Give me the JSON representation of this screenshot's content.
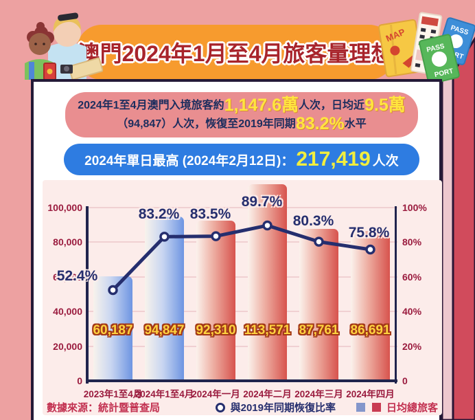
{
  "header": {
    "title": "澳門2024年1月至4月旅客量理想",
    "icons": {
      "map": "MAP",
      "pass_blue_top": "PASS",
      "pass_blue_bottom": "PORT",
      "pass_green_top": "PASS",
      "pass_green_bottom": "PORT"
    }
  },
  "summary": {
    "line1_pre": "2024年1至4月澳門入境旅客約",
    "line1_big1": "1,147.6萬",
    "line1_mid": "人次，日均近",
    "line1_big2": "9.5萬",
    "line2_pre": "（94,847）人次，恢復至2019年同期",
    "line2_big": "83.2%",
    "line2_post": "水平"
  },
  "peak_banner": {
    "label": "2024年單日最高 (2024年2月12日)：",
    "value": "217,419",
    "suffix": "人次"
  },
  "chart_data": {
    "type": "bar+line",
    "categories": [
      "2023年1至4月",
      "2024年1至4月",
      "2024年一月",
      "2024年二月",
      "2024年三月",
      "2024年四月"
    ],
    "series": [
      {
        "name": "日均總旅客",
        "type": "bar",
        "values": [
          60187,
          94847,
          92310,
          113571,
          87761,
          86691
        ],
        "value_labels": [
          "60,187",
          "94,847",
          "92,310",
          "113,571",
          "87,761",
          "86,691"
        ],
        "bar_styles": [
          "blue",
          "blue",
          "red",
          "red",
          "red",
          "red"
        ]
      },
      {
        "name": "與2019年同期恢復比率",
        "type": "line",
        "values": [
          52.4,
          83.2,
          83.5,
          89.7,
          80.3,
          75.8
        ],
        "point_labels": [
          "52.4%",
          "83.2%",
          "83.5%",
          "89.7%",
          "80.3%",
          "75.8%"
        ]
      }
    ],
    "left_axis": {
      "ticks": [
        "0",
        "20,000",
        "40,000",
        "60,000",
        "80,000",
        "100,000"
      ],
      "max": 100000
    },
    "right_axis": {
      "ticks": [
        "0",
        "20%",
        "40%",
        "60%",
        "80%",
        "100%"
      ],
      "max": 100
    },
    "grid": true,
    "legend_position": "bottom-right"
  },
  "footer": {
    "source": "數據來源：統計暨普查局",
    "legend_line": "與2019年同期恢復比率",
    "legend_bar": "日均總旅客"
  },
  "colors": {
    "background": "#eda1a1",
    "spine": "#d14b5c",
    "spine_strip": "#edc7ce",
    "card_border": "#241a38",
    "title_banner": "#f79b2e",
    "title_text": "#a8242b",
    "summary_banner": "#e98e90",
    "summary_text": "#1c2d5e",
    "highlight_yellow": "#ffe53f",
    "peak_banner": "#2e7ce1",
    "chart_panel": "#fcecea",
    "axis_tick": "#9a1b3e",
    "line": "#252e6e",
    "bar_blue": "#6e95e2",
    "bar_red": "#d7534d",
    "bar_value_text": "#ffd23f",
    "source_text": "#c23050"
  }
}
